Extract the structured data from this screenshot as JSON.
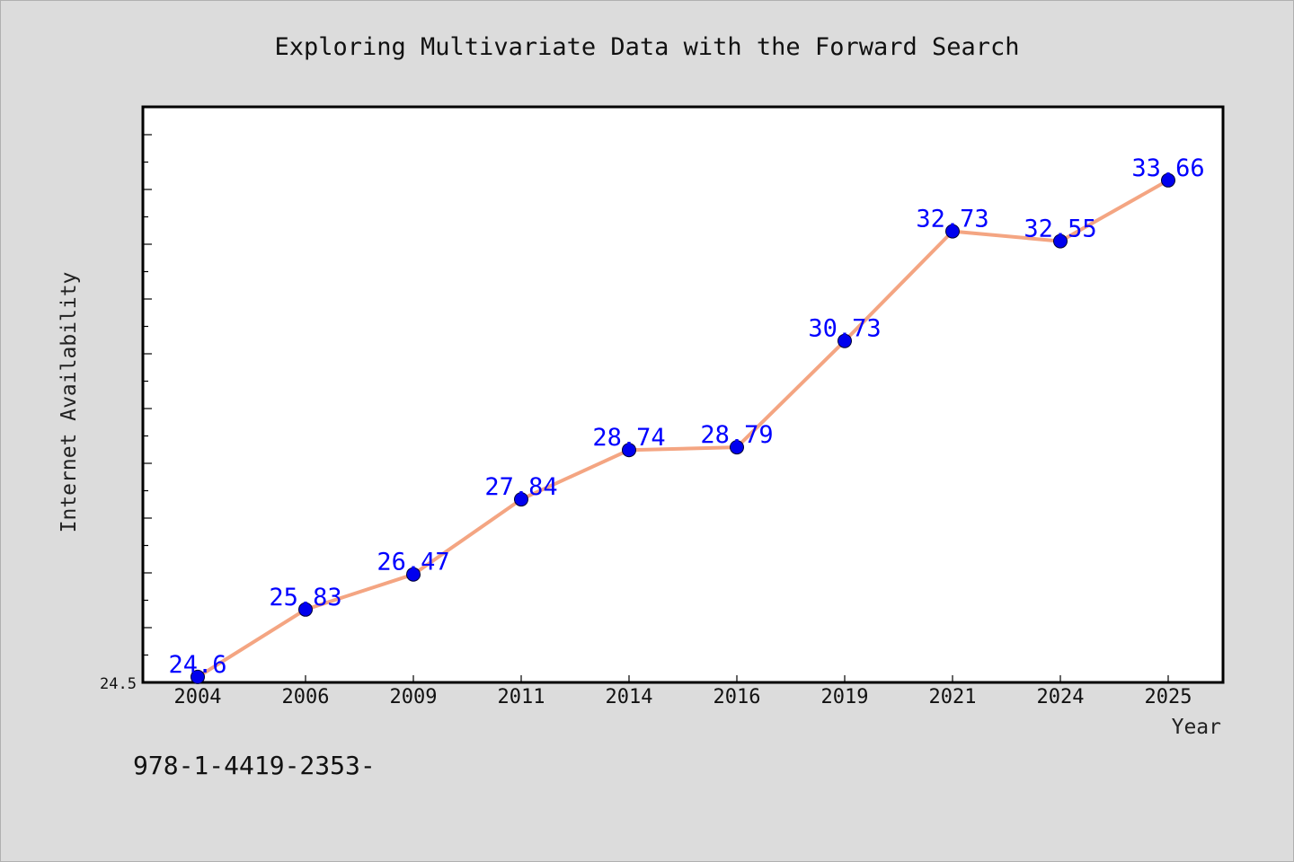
{
  "colors": {
    "background": "#dcdcdc",
    "plot_background": "#ffffff",
    "line": "#f4a582",
    "marker": "#0000ee",
    "data_label": "#0000ff",
    "axis": "#000000"
  },
  "footnote": "978-1-4419-2353-",
  "chart_data": {
    "type": "line",
    "title": "Exploring Multivariate Data with the Forward Search",
    "xlabel": "Year",
    "ylabel": "Internet Availability",
    "categories": [
      "2004",
      "2006",
      "2009",
      "2011",
      "2014",
      "2016",
      "2019",
      "2021",
      "2024",
      "2025"
    ],
    "series": [
      {
        "values": [
          24.6,
          25.83,
          26.47,
          27.84,
          28.74,
          28.79,
          30.73,
          32.73,
          32.55,
          33.66
        ],
        "labels": [
          "24.6",
          "25.83",
          "26.47",
          "27.84",
          "28.74",
          "28.79",
          "30.73",
          "32.73",
          "32.55",
          "33.66"
        ]
      }
    ],
    "y_tick_label": "24.5",
    "ylim": [
      24.5,
      35.0
    ],
    "grid": false,
    "legend": "none"
  }
}
